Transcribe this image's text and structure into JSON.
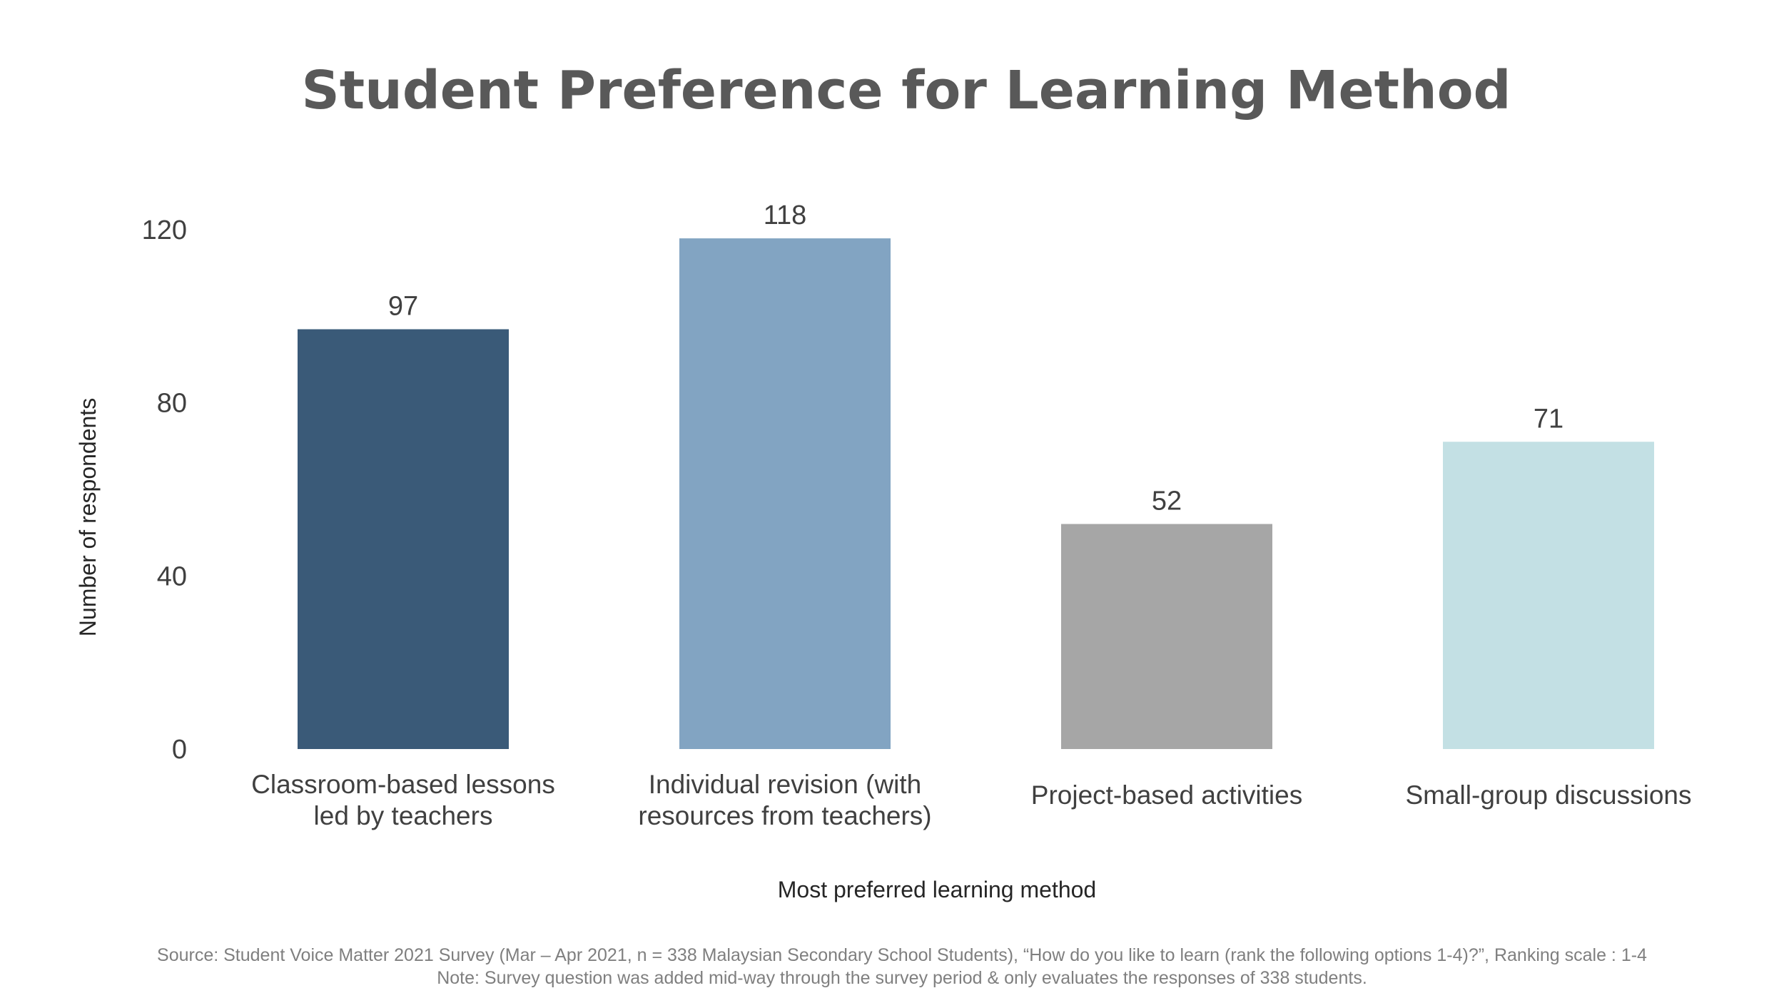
{
  "chart_data": {
    "type": "bar",
    "title": "Student Preference for Learning Method",
    "xlabel": "Most preferred learning method",
    "ylabel": "Number of respondents",
    "ylim": [
      0,
      120
    ],
    "yticks": [
      0,
      40,
      80,
      120
    ],
    "grid": false,
    "categories": [
      [
        "Classroom-based lessons",
        "led by teachers"
      ],
      [
        "Individual revision (with",
        "resources from teachers)"
      ],
      [
        "Project-based activities"
      ],
      [
        "Small-group discussions"
      ]
    ],
    "values": [
      97,
      118,
      52,
      71
    ],
    "colors": [
      "#3a5a78",
      "#82a4c2",
      "#a6a6a6",
      "#c3e0e4"
    ]
  },
  "footnote": {
    "source": "Source: Student Voice Matter 2021 Survey (Mar – Apr 2021, n = 338 Malaysian Secondary School Students), “How do you like to learn (rank the following options 1-4)?”,  Ranking scale : 1-4",
    "note": "Note: Survey question was added mid-way through the survey period & only evaluates the responses of 338 students."
  }
}
